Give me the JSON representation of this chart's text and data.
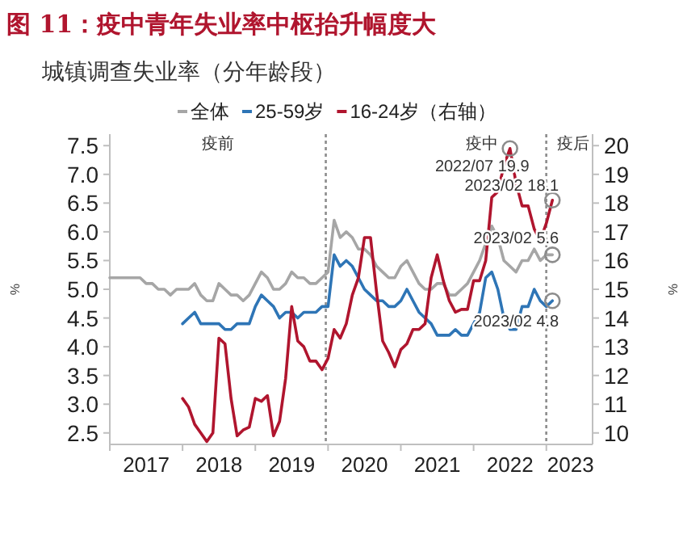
{
  "chart_data": {
    "type": "line",
    "title": "图 11：疫中青年失业率中枢抬升幅度大",
    "subtitle": "城镇调查失业率（分年龄段）",
    "ylabel": "%",
    "y2label": "%",
    "x": [
      "2017-01",
      "2017-02",
      "2017-03",
      "2017-04",
      "2017-05",
      "2017-06",
      "2017-07",
      "2017-08",
      "2017-09",
      "2017-10",
      "2017-11",
      "2017-12",
      "2018-01",
      "2018-02",
      "2018-03",
      "2018-04",
      "2018-05",
      "2018-06",
      "2018-07",
      "2018-08",
      "2018-09",
      "2018-10",
      "2018-11",
      "2018-12",
      "2019-01",
      "2019-02",
      "2019-03",
      "2019-04",
      "2019-05",
      "2019-06",
      "2019-07",
      "2019-08",
      "2019-09",
      "2019-10",
      "2019-11",
      "2019-12",
      "2020-01",
      "2020-02",
      "2020-03",
      "2020-04",
      "2020-05",
      "2020-06",
      "2020-07",
      "2020-08",
      "2020-09",
      "2020-10",
      "2020-11",
      "2020-12",
      "2021-01",
      "2021-02",
      "2021-03",
      "2021-04",
      "2021-05",
      "2021-06",
      "2021-07",
      "2021-08",
      "2021-09",
      "2021-10",
      "2021-11",
      "2021-12",
      "2022-01",
      "2022-02",
      "2022-03",
      "2022-04",
      "2022-05",
      "2022-06",
      "2022-07",
      "2022-08",
      "2022-09",
      "2022-10",
      "2022-11",
      "2022-12",
      "2023-01",
      "2023-02"
    ],
    "series": [
      {
        "name": "全体",
        "color": "#a6a6a6",
        "values": [
          5.2,
          5.2,
          5.2,
          5.2,
          5.2,
          5.2,
          5.1,
          5.1,
          5.0,
          5.0,
          4.9,
          5.0,
          5.0,
          5.0,
          5.1,
          4.9,
          4.8,
          4.8,
          5.1,
          5.0,
          4.9,
          4.9,
          4.8,
          4.9,
          5.1,
          5.3,
          5.2,
          5.0,
          5.0,
          5.1,
          5.3,
          5.2,
          5.2,
          5.1,
          5.1,
          5.2,
          5.3,
          6.2,
          5.9,
          6.0,
          5.9,
          5.7,
          5.7,
          5.6,
          5.4,
          5.3,
          5.2,
          5.2,
          5.4,
          5.5,
          5.3,
          5.1,
          5.0,
          5.0,
          5.1,
          5.1,
          4.9,
          4.9,
          5.0,
          5.1,
          5.3,
          5.5,
          5.8,
          6.1,
          5.9,
          5.5,
          5.4,
          5.3,
          5.5,
          5.5,
          5.7,
          5.5,
          5.6,
          5.6
        ]
      },
      {
        "name": "25-59岁",
        "color": "#2e75b6",
        "values": [
          null,
          null,
          null,
          null,
          null,
          null,
          null,
          null,
          null,
          null,
          null,
          null,
          4.4,
          4.5,
          4.6,
          4.4,
          4.4,
          4.4,
          4.4,
          4.3,
          4.3,
          4.4,
          4.4,
          4.4,
          4.7,
          4.9,
          4.8,
          4.7,
          4.5,
          4.6,
          4.6,
          4.5,
          4.6,
          4.6,
          4.6,
          4.7,
          4.7,
          5.6,
          5.4,
          5.5,
          5.4,
          5.2,
          5.0,
          4.9,
          4.8,
          4.8,
          4.7,
          4.7,
          4.8,
          5.0,
          4.8,
          4.6,
          4.5,
          4.4,
          4.2,
          4.2,
          4.2,
          4.3,
          4.2,
          4.2,
          4.4,
          4.6,
          5.2,
          5.3,
          5.0,
          4.5,
          4.3,
          4.3,
          4.7,
          4.7,
          5.0,
          4.8,
          4.7,
          4.8
        ]
      },
      {
        "name": "16-24岁（右轴）",
        "color": "#b0152e",
        "axis": "y2",
        "values": [
          null,
          null,
          null,
          null,
          null,
          null,
          null,
          null,
          null,
          null,
          null,
          null,
          11.2,
          10.9,
          10.3,
          10.0,
          9.7,
          10.0,
          13.3,
          13.1,
          11.2,
          9.9,
          10.1,
          10.2,
          11.2,
          11.1,
          11.3,
          9.9,
          10.4,
          11.9,
          14.4,
          13.2,
          13.0,
          12.5,
          12.5,
          12.2,
          12.6,
          13.6,
          13.3,
          13.8,
          14.8,
          15.4,
          16.8,
          16.8,
          14.9,
          13.2,
          12.8,
          12.3,
          12.9,
          13.1,
          13.6,
          13.6,
          13.8,
          15.4,
          16.2,
          15.3,
          14.6,
          14.2,
          14.3,
          14.3,
          15.3,
          15.3,
          16.0,
          18.2,
          18.4,
          19.3,
          19.9,
          18.7,
          17.9,
          17.9,
          17.1,
          16.7,
          17.3,
          18.1
        ]
      }
    ],
    "xlim": [
      "2017-01-01",
      "2023-08-20"
    ],
    "xticks": [
      {
        "value": "2017-01-01",
        "label": null
      },
      {
        "value": "2017-07-01",
        "label": "2017"
      },
      {
        "value": "2018-01-01",
        "label": null
      },
      {
        "value": "2018-07-01",
        "label": "2018"
      },
      {
        "value": "2019-01-01",
        "label": null
      },
      {
        "value": "2019-07-01",
        "label": "2019"
      },
      {
        "value": "2020-01-01",
        "label": null
      },
      {
        "value": "2020-07-01",
        "label": "2020"
      },
      {
        "value": "2021-01-01",
        "label": null
      },
      {
        "value": "2021-07-01",
        "label": "2021"
      },
      {
        "value": "2022-01-01",
        "label": null
      },
      {
        "value": "2022-07-01",
        "label": "2022"
      },
      {
        "value": "2023-01-01",
        "label": null
      },
      {
        "value": "2023-05-01",
        "label": "2023"
      }
    ],
    "ylim": [
      2.3,
      7.7
    ],
    "yticks": [
      2.5,
      {
        "value": 3,
        "label": "3.0"
      },
      3.5,
      {
        "value": 4,
        "label": "4.0"
      },
      4.5,
      {
        "value": 5,
        "label": "5.0"
      },
      5.5,
      {
        "value": 6,
        "label": "6.0"
      },
      6.5,
      {
        "value": 7,
        "label": "7.0"
      },
      7.5
    ],
    "y2lim": [
      9.6,
      20.4
    ],
    "y2ticks": [
      10,
      11,
      12,
      13,
      14,
      15,
      16,
      17,
      18,
      19,
      20
    ],
    "ref_lines": [
      {
        "axis": "x",
        "value": "2019-12-20",
        "color": "#8c8c8c",
        "line_style": "dotted"
      },
      {
        "axis": "x",
        "value": "2022-12-31",
        "color": "#8c8c8c",
        "line_style": "dotted"
      }
    ],
    "annotations": [
      "疫前",
      "疫中",
      "疫后",
      "2022/07 19.9",
      "2023/02 18.1",
      {
        "text": "2023/02 5.6",
        "x": "2023-02",
        "y": 5.6
      },
      {
        "text": "2023/02 4.8",
        "x": "2023-02",
        "y": 4.8
      }
    ],
    "legend": "top",
    "marker": "none",
    "line_style": "solid"
  }
}
